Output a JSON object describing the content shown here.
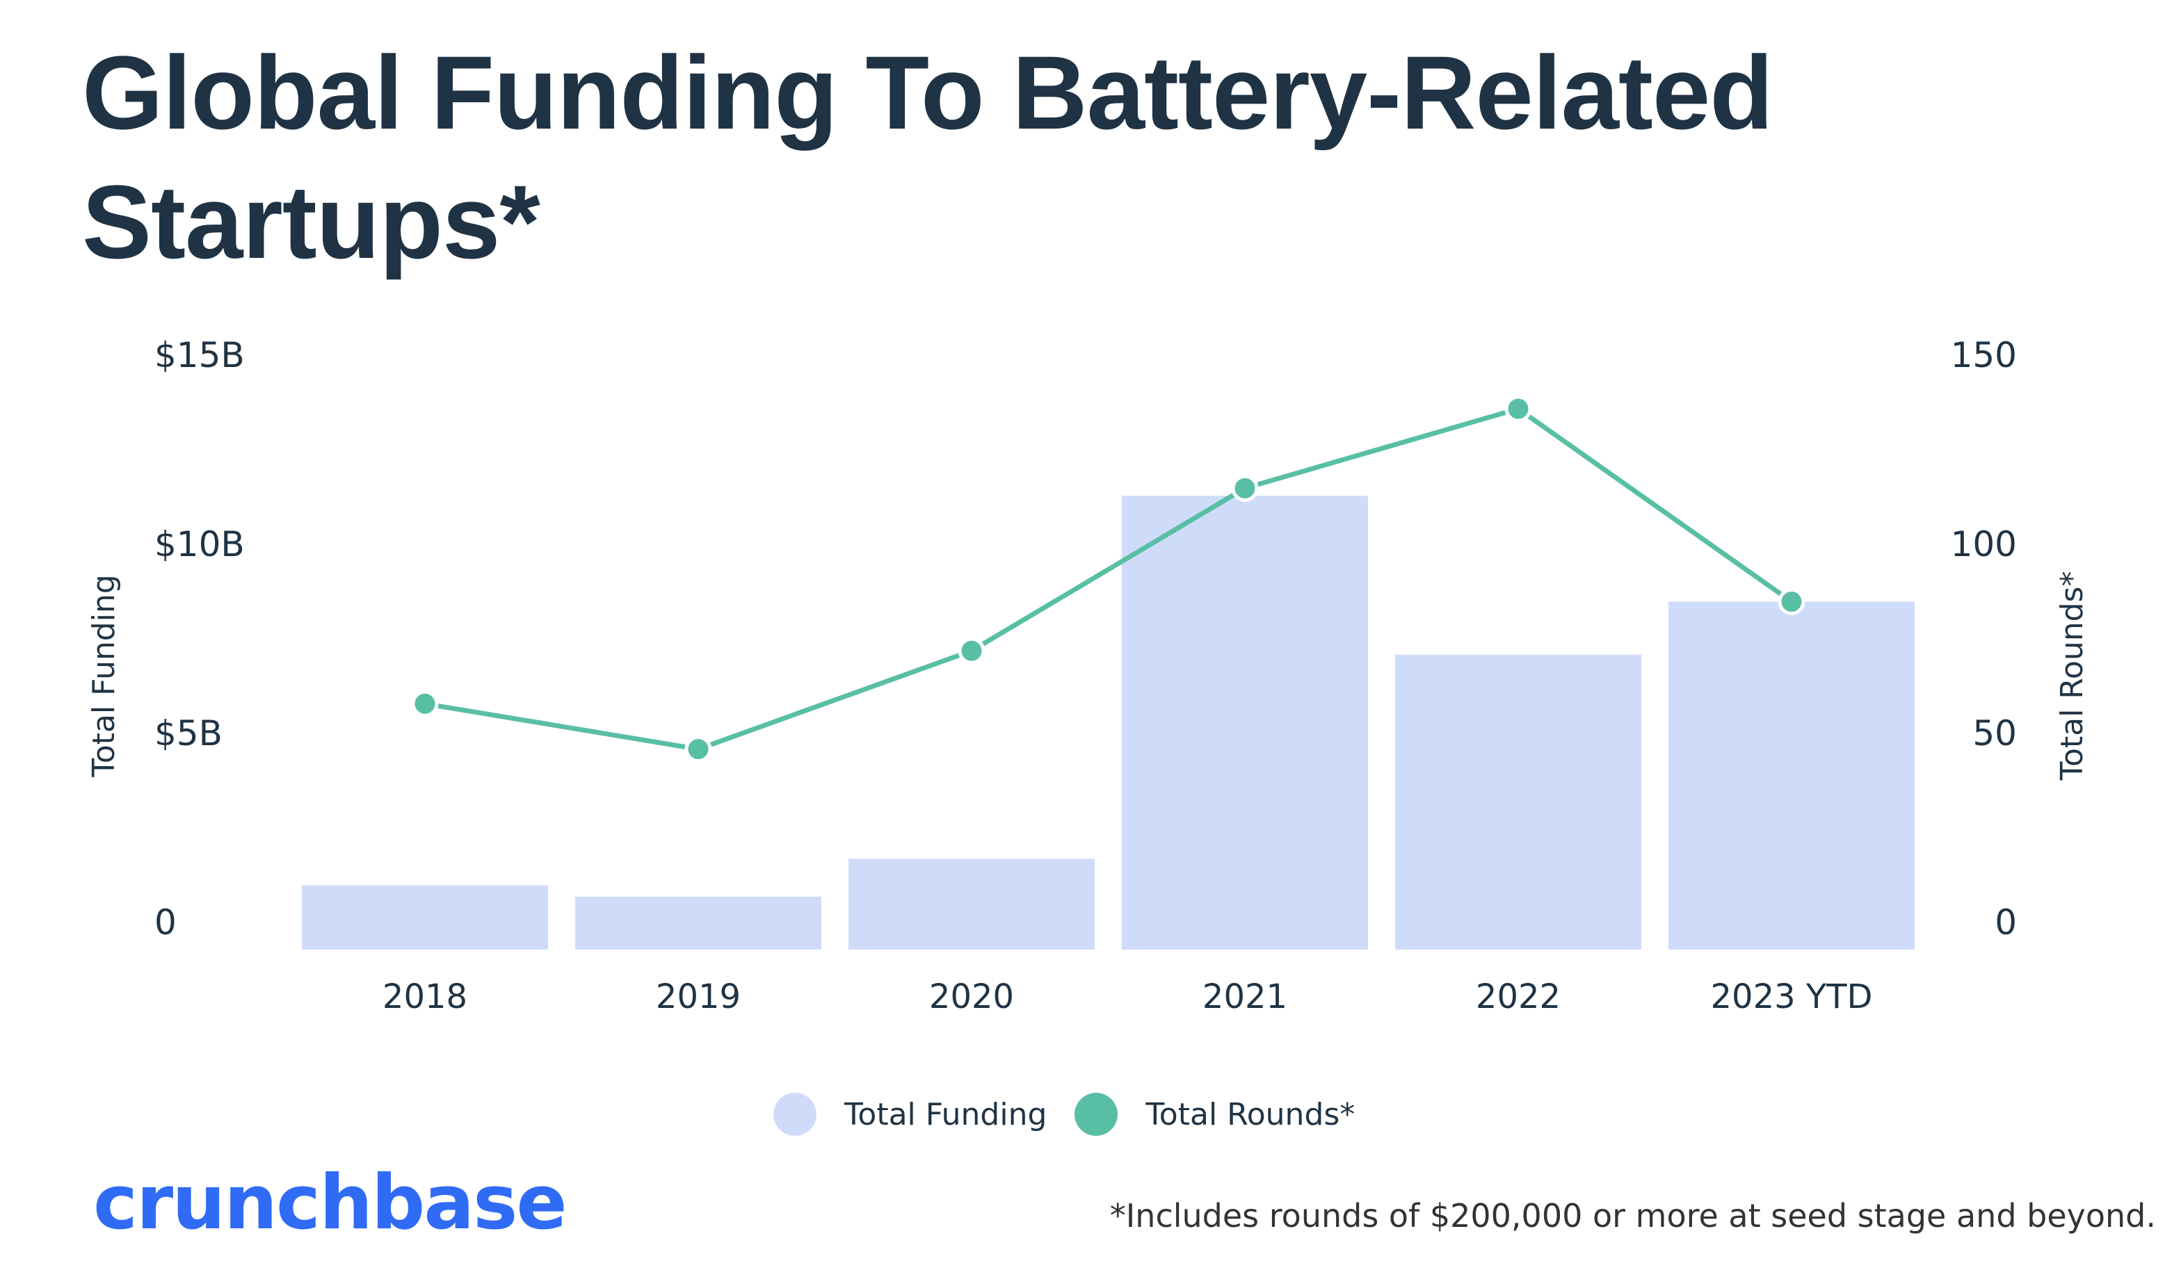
{
  "chart_data": {
    "type": "bar+line",
    "title": "Global Funding To Battery-Related Startups*",
    "categories": [
      "2018",
      "2019",
      "2020",
      "2021",
      "2022",
      "2023 YTD"
    ],
    "series": [
      {
        "name": "Total Funding",
        "type": "bar",
        "axis": "left",
        "unit": "USD billions",
        "values": [
          1.7,
          1.4,
          2.4,
          12.0,
          7.8,
          9.2
        ],
        "color": "#cfdcf9"
      },
      {
        "name": "Total Rounds*",
        "type": "line",
        "axis": "right",
        "values": [
          65,
          53,
          79,
          122,
          143,
          92
        ],
        "color": "#58bfa4"
      }
    ],
    "ylabel_left": "Total Funding",
    "ylabel_right": "Total Rounds*",
    "ylim_left": [
      0,
      15
    ],
    "ylim_right": [
      0,
      150
    ],
    "yticks_left": [
      "0",
      "$5B",
      "$10B",
      "$15B"
    ],
    "yticks_right": [
      "0",
      "50",
      "100",
      "150"
    ],
    "grid": false,
    "legend": "bottom-center"
  },
  "legend": {
    "items": [
      "Total Funding",
      "Total Rounds*"
    ]
  },
  "footer": {
    "logo": "crunchbase",
    "note": "*Includes rounds of $200,000 or more at seed stage and beyond."
  }
}
